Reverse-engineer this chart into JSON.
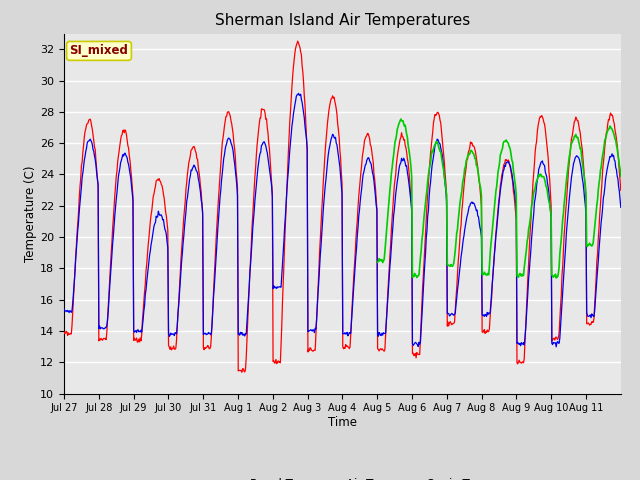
{
  "title": "Sherman Island Air Temperatures",
  "xlabel": "Time",
  "ylabel": "Temperature (C)",
  "ylim": [
    10,
    33
  ],
  "yticks": [
    10,
    12,
    14,
    16,
    18,
    20,
    22,
    24,
    26,
    28,
    30,
    32
  ],
  "fig_facecolor": "#d8d8d8",
  "plot_bg_color": "#e8e8e8",
  "grid_color": "#ffffff",
  "panel_color": "#ff0000",
  "air_color": "#0000ee",
  "sonic_color": "#00cc00",
  "legend_label_box": "SI_mixed",
  "legend_label_box_facecolor": "#ffffcc",
  "legend_label_box_edgecolor": "#cccc00",
  "legend_label_box_textcolor": "#880000",
  "xtick_labels": [
    "Jul 27",
    "Jul 28",
    "Jul 29",
    "Jul 30",
    "Jul 31",
    "Aug 1",
    "Aug 2",
    "Aug 3",
    "Aug 4",
    "Aug 5",
    "Aug 6",
    "Aug 7",
    "Aug 8",
    "Aug 9",
    "Aug 10",
    "Aug 11"
  ]
}
